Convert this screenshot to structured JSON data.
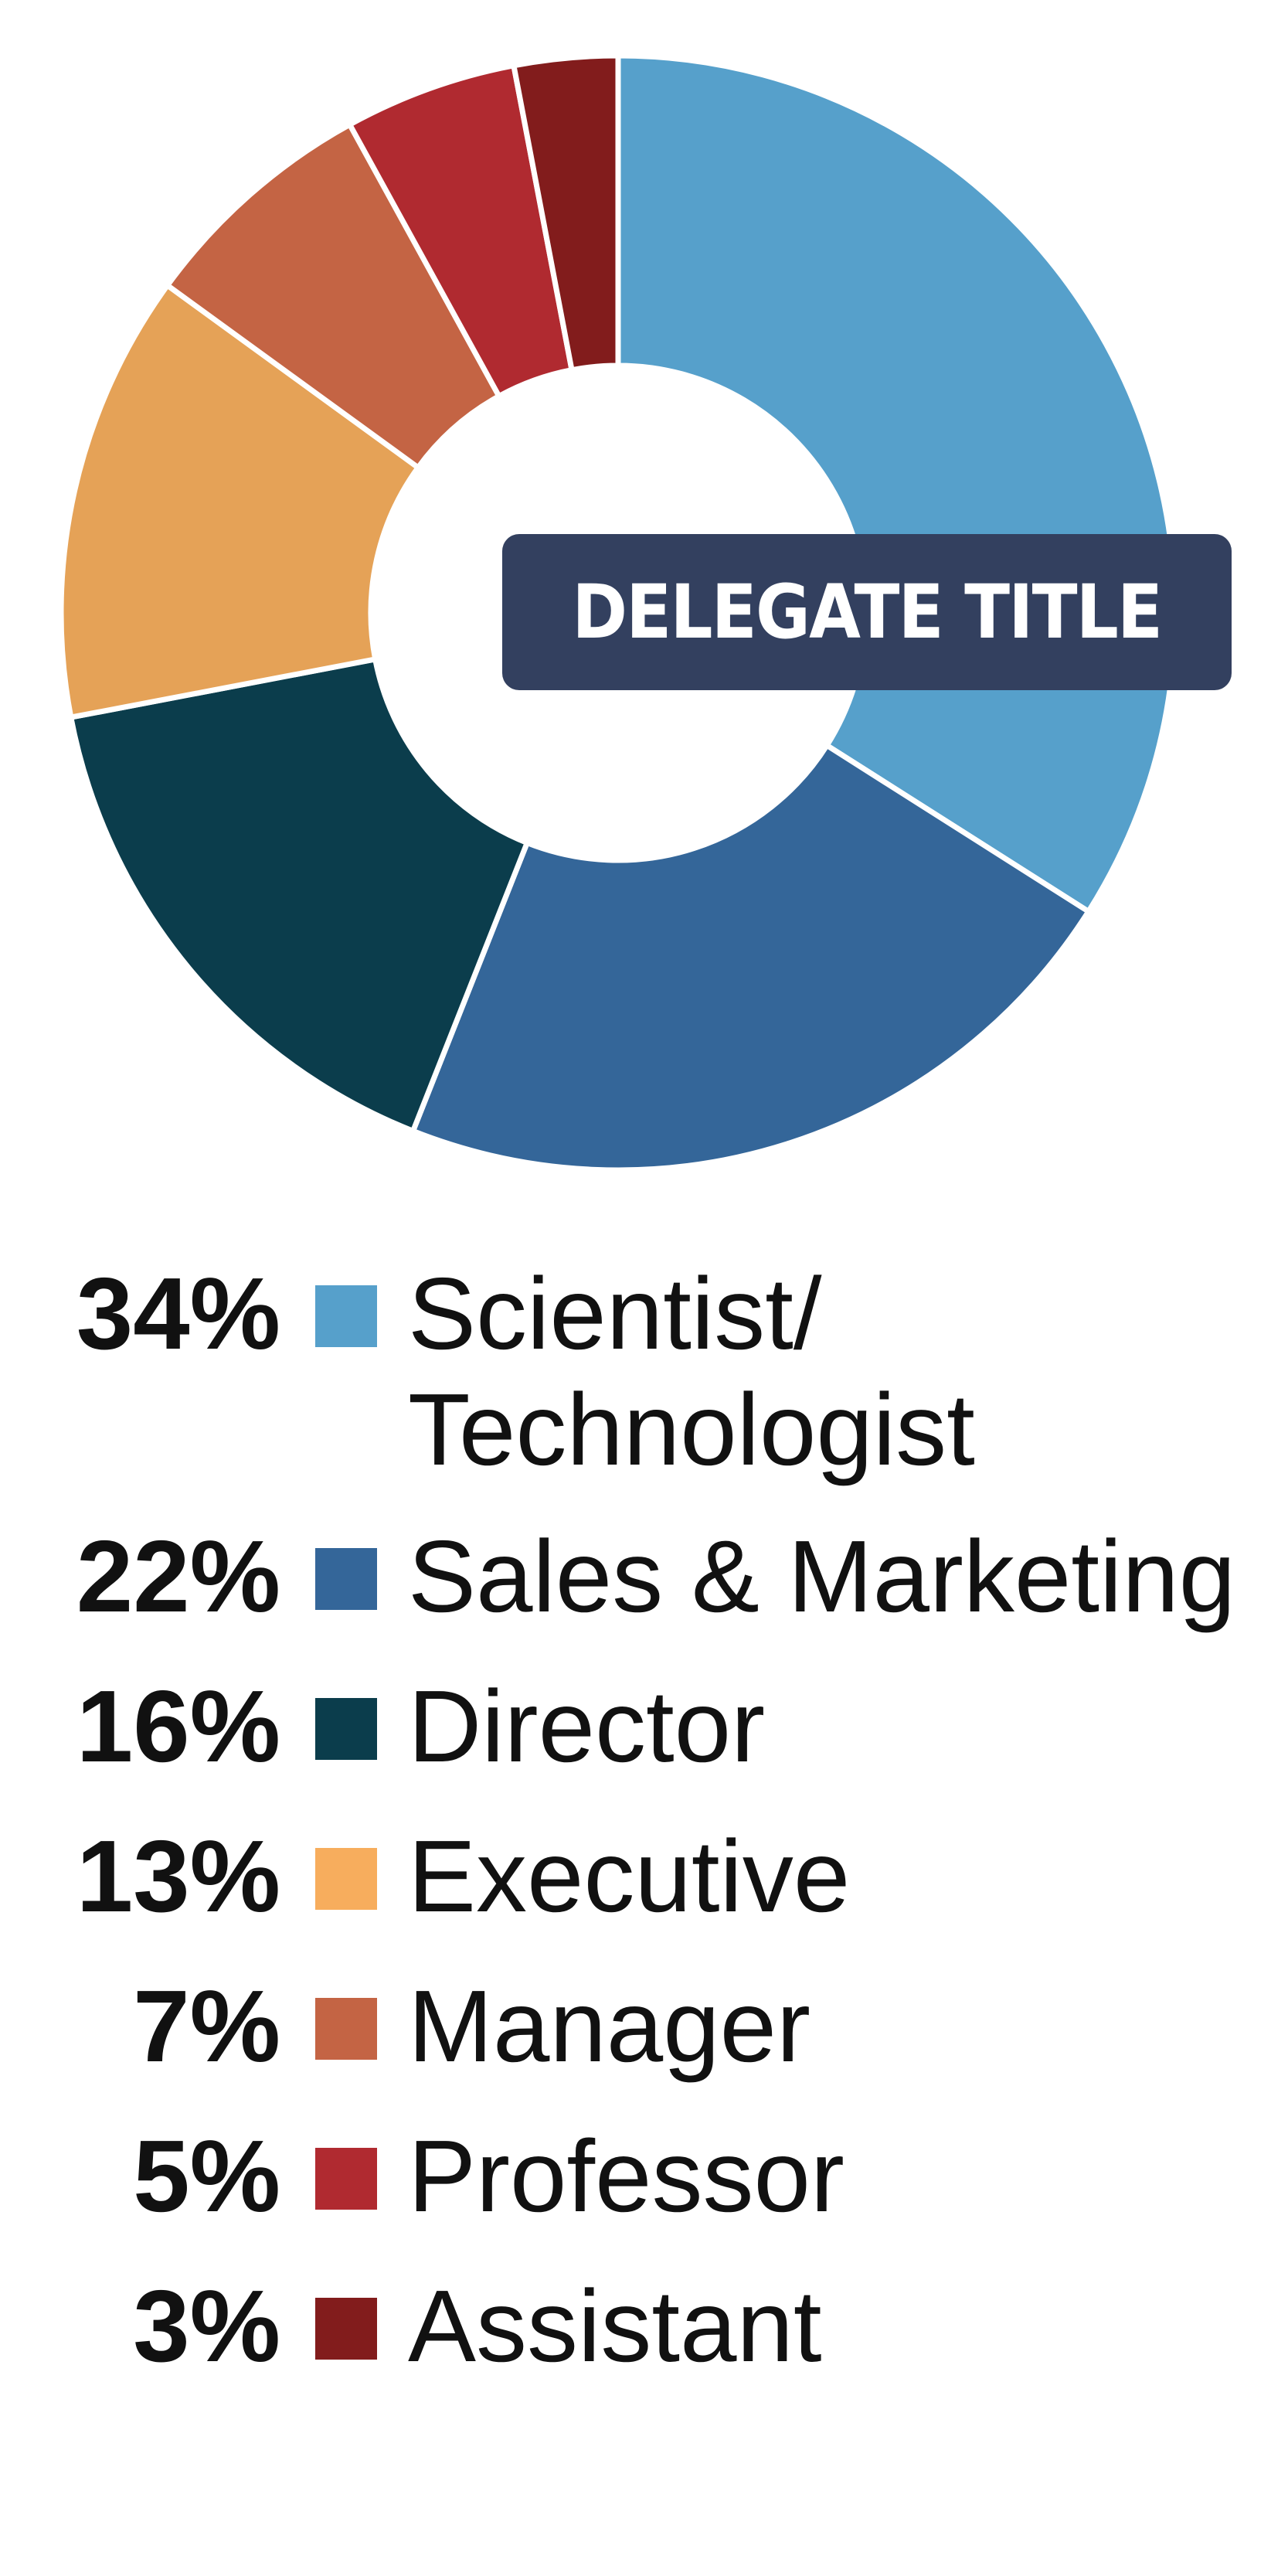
{
  "chart_data": {
    "type": "pie",
    "title": "DELEGATE TITLE",
    "categories": [
      "Scientist/\nTechnologist",
      "Sales & Marketing",
      "Director",
      "Executive",
      "Manager",
      "Professor",
      "Assistant"
    ],
    "values": [
      34,
      22,
      16,
      13,
      7,
      5,
      3
    ],
    "labels": [
      "34%",
      "22%",
      "16%",
      "13%",
      "7%",
      "5%",
      "3%"
    ],
    "colors": [
      "#56a0cb",
      "#346699",
      "#0b3d4c",
      "#e5a257",
      "#c46444",
      "#b02a30",
      "#821c1c"
    ],
    "legend_colors": [
      "#56a0cb",
      "#346699",
      "#0b3d4c",
      "#f7ad5d",
      "#c46444",
      "#b02a30",
      "#821c1c"
    ],
    "donut": true,
    "legend_placement": "bottom"
  }
}
